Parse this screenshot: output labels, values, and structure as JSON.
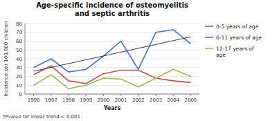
{
  "chart_data": {
    "type": "line",
    "title": "Age-specific incidence of osteomyelitis\nand septic arthritis",
    "x_label": "Years",
    "y_label": "Incidence per 100,000 children",
    "x": [
      1996,
      1997,
      1998,
      1999,
      2000,
      2001,
      2002,
      2003,
      2004,
      2005
    ],
    "series": [
      {
        "name": "0-5 years of age",
        "color": "#4472C4",
        "values": [
          30,
          40,
          25,
          28,
          43,
          60,
          28,
          70,
          73,
          57
        ]
      },
      {
        "name": "6-11 years of age",
        "color": "#C0504D",
        "values": [
          22,
          32,
          15,
          12,
          23,
          27,
          27,
          18,
          15,
          13
        ]
      },
      {
        "name": "12-17 years of\nage",
        "color": "#9BBB59",
        "values": [
          10,
          22,
          6,
          10,
          18,
          17,
          8,
          18,
          28,
          20
        ]
      },
      {
        "color": "#404040",
        "x": [
          1996,
          2005
        ],
        "values": [
          25.872727,
          64.927273
        ]
      }
    ],
    "xlim": [
      1995.5,
      2005.5
    ],
    "xticks": [
      1996,
      1997,
      1998,
      1999,
      2000,
      2001,
      2002,
      2003,
      2004,
      2005
    ],
    "ylim": [
      0,
      80
    ],
    "yticks": [
      0,
      10,
      20,
      30,
      40,
      50,
      60,
      70,
      80
    ],
    "grid": true,
    "legend": "right",
    "annotations": [
      "†Pvalue for linear trend < 0.001"
    ]
  }
}
